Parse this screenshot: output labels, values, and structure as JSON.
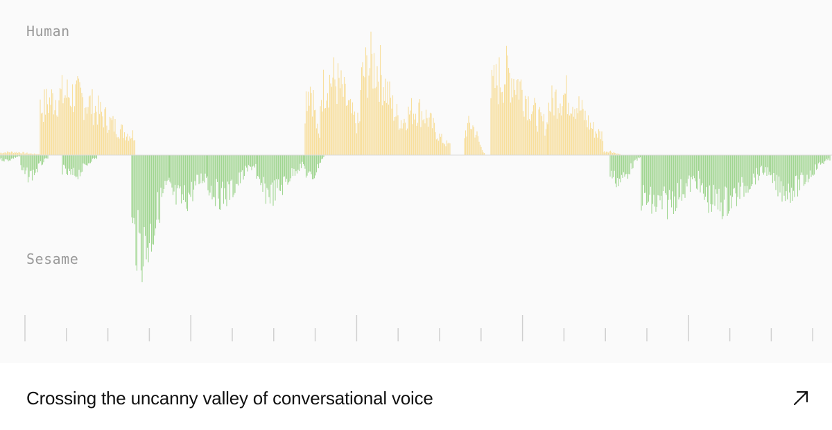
{
  "visual": {
    "tracks": [
      {
        "label": "Human",
        "color": "#f7d98a"
      },
      {
        "label": "Sesame",
        "color": "#8fcf7e"
      }
    ],
    "axis_color": "#cfcfcf"
  },
  "caption": {
    "title": "Crossing the uncanny valley of conversational voice",
    "link_icon": "arrow-up-right-icon"
  }
}
